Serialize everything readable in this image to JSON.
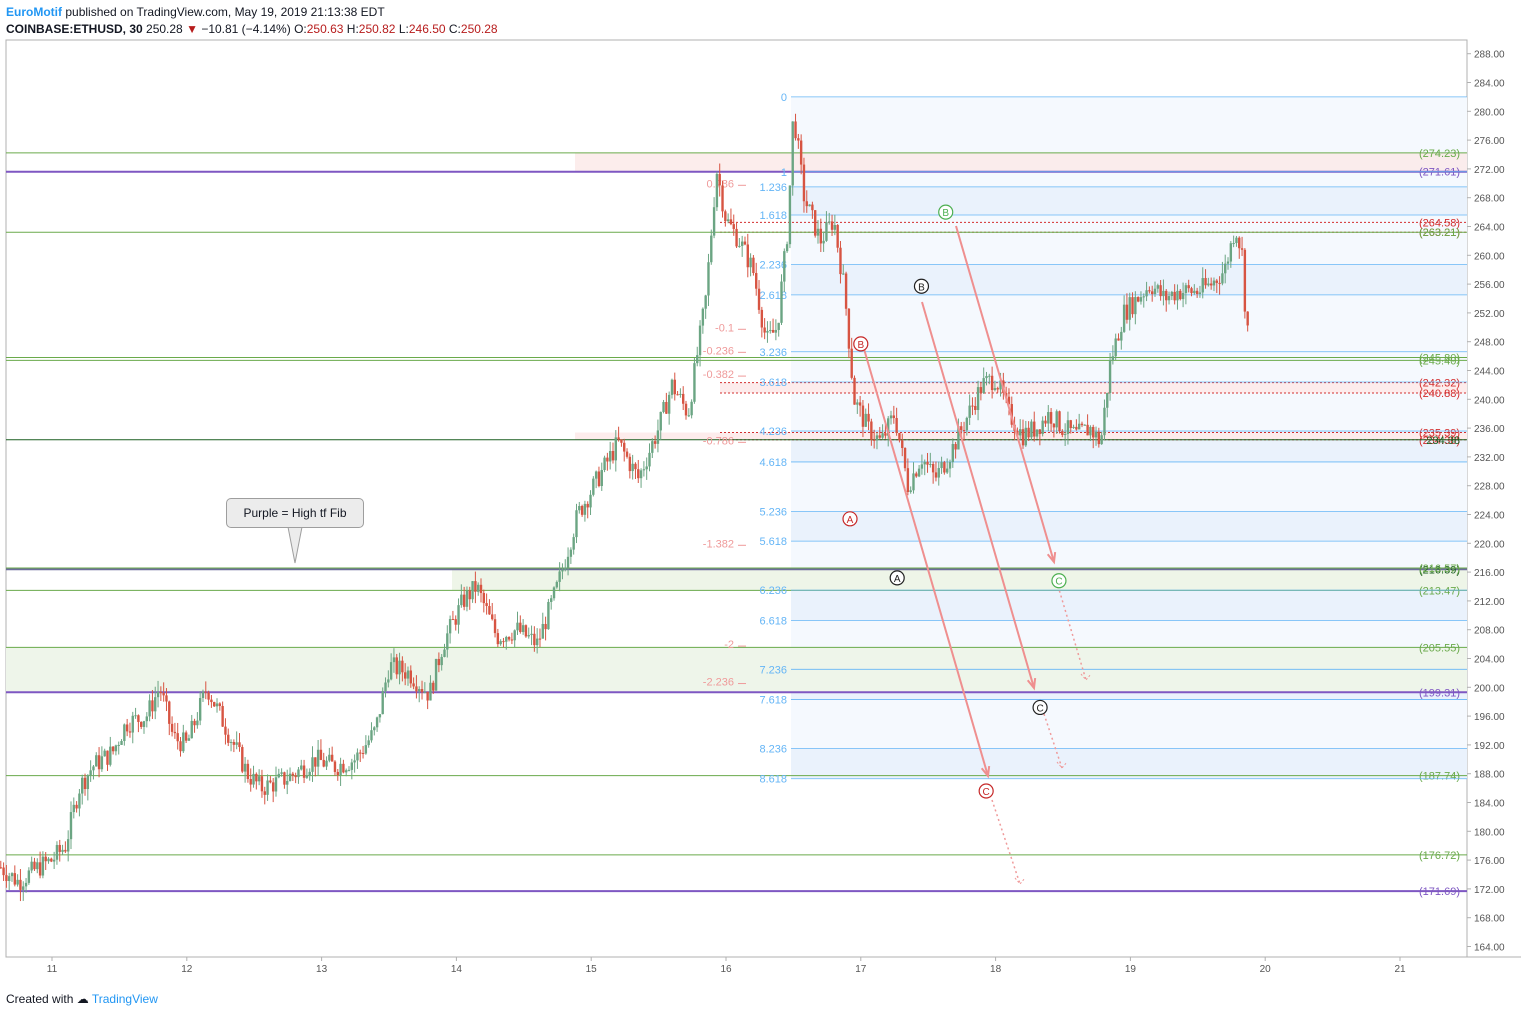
{
  "header": {
    "author": "EuroMotif",
    "published_text": "published on TradingView.com, May 19, 2019 21:13:38 EDT",
    "symbol": "COINBASE:ETHUSD, 30",
    "last": "250.28",
    "change_icon": "down-triangle-icon",
    "change": "−10.81 (−4.14%)",
    "open_label": "O:",
    "open": "250.63",
    "high_label": "H:",
    "high": "250.82",
    "low_label": "L:",
    "low": "246.50",
    "close_label": "C:",
    "close": "250.28"
  },
  "footer": {
    "created_with": "Created with",
    "brand": "TradingView",
    "logo_icon": "tradingview-logo-icon"
  },
  "callout": {
    "text": "Purple = High tf Fib"
  },
  "colors": {
    "up": "#6ba583",
    "down": "#d75442",
    "purple": "#7e57c2",
    "green_line": "#8bc34a",
    "blue_fib": "#64b5f6",
    "red_fib": "#ef9a9a",
    "wave_green": "#4caf50",
    "wave_red": "#c62828",
    "wave_black": "#212121"
  },
  "chart_data": {
    "type": "candlestick",
    "instrument": "COINBASE:ETHUSD",
    "interval": "30",
    "x_tick_labels": [
      "11",
      "12",
      "13",
      "14",
      "15",
      "16",
      "17",
      "18",
      "19",
      "20",
      "21"
    ],
    "y_tick_labels": [
      "164.00",
      "168.00",
      "172.00",
      "176.00",
      "180.00",
      "184.00",
      "188.00",
      "192.00",
      "196.00",
      "200.00",
      "204.00",
      "208.00",
      "212.00",
      "216.00",
      "220.00",
      "224.00",
      "228.00",
      "232.00",
      "236.00",
      "240.00",
      "244.00",
      "248.00",
      "252.00",
      "256.00",
      "260.00",
      "264.00",
      "268.00",
      "272.00",
      "276.00",
      "280.00",
      "284.00",
      "288.00"
    ],
    "ylim": [
      162,
      288
    ],
    "xlim": [
      10.6,
      21.5
    ],
    "price_path": [
      [
        10.62,
        175
      ],
      [
        10.75,
        173
      ],
      [
        10.9,
        175
      ],
      [
        11.0,
        176
      ],
      [
        11.1,
        178
      ],
      [
        11.2,
        186
      ],
      [
        11.3,
        189
      ],
      [
        11.45,
        191
      ],
      [
        11.55,
        195
      ],
      [
        11.7,
        196
      ],
      [
        11.8,
        200
      ],
      [
        11.9,
        193
      ],
      [
        12.0,
        192
      ],
      [
        12.15,
        200
      ],
      [
        12.3,
        194
      ],
      [
        12.45,
        188
      ],
      [
        12.55,
        186
      ],
      [
        12.7,
        187
      ],
      [
        12.8,
        188
      ],
      [
        12.95,
        190
      ],
      [
        13.1,
        189
      ],
      [
        13.25,
        190
      ],
      [
        13.4,
        194
      ],
      [
        13.5,
        203
      ],
      [
        13.65,
        202
      ],
      [
        13.8,
        199
      ],
      [
        13.9,
        206
      ],
      [
        14.05,
        212
      ],
      [
        14.15,
        214
      ],
      [
        14.3,
        207
      ],
      [
        14.45,
        208
      ],
      [
        14.6,
        206
      ],
      [
        14.75,
        214
      ],
      [
        14.9,
        224
      ],
      [
        15.05,
        229
      ],
      [
        15.2,
        234
      ],
      [
        15.35,
        229
      ],
      [
        15.5,
        236
      ],
      [
        15.6,
        242
      ],
      [
        15.72,
        238
      ],
      [
        15.85,
        254
      ],
      [
        15.93,
        272
      ],
      [
        16.0,
        265
      ],
      [
        16.1,
        262
      ],
      [
        16.2,
        258
      ],
      [
        16.3,
        248
      ],
      [
        16.38,
        250
      ],
      [
        16.46,
        264
      ],
      [
        16.5,
        280
      ],
      [
        16.58,
        268
      ],
      [
        16.7,
        262
      ],
      [
        16.8,
        265
      ],
      [
        16.88,
        255
      ],
      [
        16.95,
        240
      ],
      [
        17.05,
        236
      ],
      [
        17.15,
        234
      ],
      [
        17.25,
        238
      ],
      [
        17.35,
        228
      ],
      [
        17.45,
        232
      ],
      [
        17.55,
        229
      ],
      [
        17.65,
        232
      ],
      [
        17.8,
        238
      ],
      [
        17.9,
        242
      ],
      [
        18.0,
        243
      ],
      [
        18.1,
        238
      ],
      [
        18.2,
        235
      ],
      [
        18.3,
        236
      ],
      [
        18.4,
        238
      ],
      [
        18.5,
        236
      ],
      [
        18.6,
        235
      ],
      [
        18.7,
        236
      ],
      [
        18.78,
        234
      ],
      [
        18.85,
        245
      ],
      [
        18.95,
        252
      ],
      [
        19.05,
        254
      ],
      [
        19.15,
        256
      ],
      [
        19.25,
        254
      ],
      [
        19.35,
        255
      ],
      [
        19.5,
        255
      ],
      [
        19.6,
        256
      ],
      [
        19.7,
        258
      ],
      [
        19.78,
        264
      ],
      [
        19.83,
        260
      ],
      [
        19.86,
        250
      ],
      [
        19.88,
        250
      ]
    ],
    "horizontal_levels": [
      {
        "label": "(274.23)",
        "value": 274.23,
        "color": "green"
      },
      {
        "label": "(271.61)",
        "value": 271.61,
        "color": "purple"
      },
      {
        "label": "(264.58)",
        "value": 264.58,
        "color": "red"
      },
      {
        "label": "(263.21)",
        "value": 263.21,
        "color": "red"
      },
      {
        "label": "(263.21)",
        "value": 263.21,
        "color": "green"
      },
      {
        "label": "(245.80)",
        "value": 245.8,
        "color": "green"
      },
      {
        "label": "(245.40)",
        "value": 245.4,
        "color": "green"
      },
      {
        "label": "(242.32)",
        "value": 242.32,
        "color": "red"
      },
      {
        "label": "(240.88)",
        "value": 240.88,
        "color": "red"
      },
      {
        "label": "(235.39)",
        "value": 235.39,
        "color": "red"
      },
      {
        "label": "(234.38)",
        "value": 234.38,
        "color": "red"
      },
      {
        "label": "234.38",
        "value": 234.38,
        "color": "darkgreen"
      },
      {
        "label": "(216.39)",
        "value": 216.39,
        "color": "darkgreen"
      },
      {
        "label": "(216.57)",
        "value": 216.57,
        "color": "green"
      },
      {
        "label": "(213.47)",
        "value": 213.47,
        "color": "green"
      },
      {
        "label": "(205.55)",
        "value": 205.55,
        "color": "green"
      },
      {
        "label": "(199.31)",
        "value": 199.31,
        "color": "purple"
      },
      {
        "label": "(187.74)",
        "value": 187.74,
        "color": "green"
      },
      {
        "label": "(176.72)",
        "value": 176.72,
        "color": "green"
      },
      {
        "label": "(171.69)",
        "value": 171.69,
        "color": "purple"
      }
    ],
    "blue_fib_labels": [
      {
        "label": "0",
        "value": 282
      },
      {
        "label": "1",
        "value": 271.6
      },
      {
        "label": "1.236",
        "value": 269.5
      },
      {
        "label": "1.618",
        "value": 265.6
      },
      {
        "label": "2.236",
        "value": 258.7
      },
      {
        "label": "2.618",
        "value": 254.5
      },
      {
        "label": "3.236",
        "value": 246.6
      },
      {
        "label": "3.618",
        "value": 242.4
      },
      {
        "label": "4.236",
        "value": 235.6
      },
      {
        "label": "4.618",
        "value": 231.3
      },
      {
        "label": "5.236",
        "value": 224.4
      },
      {
        "label": "5.618",
        "value": 220.3
      },
      {
        "label": "6.236",
        "value": 213.5
      },
      {
        "label": "6.618",
        "value": 209.3
      },
      {
        "label": "7.236",
        "value": 202.5
      },
      {
        "label": "7.618",
        "value": 198.3
      },
      {
        "label": "8.236",
        "value": 191.5
      },
      {
        "label": "8.618",
        "value": 187.3
      }
    ],
    "red_fib_labels": [
      {
        "label": "0.786",
        "value": 270
      },
      {
        "label": "-0.1",
        "value": 250
      },
      {
        "label": "-0.236",
        "value": 246.8
      },
      {
        "label": "-0.382",
        "value": 243.5
      },
      {
        "label": "-0.786",
        "value": 234.3
      },
      {
        "label": "-1.382",
        "value": 220
      },
      {
        "label": "-2",
        "value": 206
      },
      {
        "label": "-2.236",
        "value": 200.8
      }
    ],
    "wave_labels": [
      {
        "label": "B",
        "x": 17.63,
        "value": 266,
        "color": "green"
      },
      {
        "label": "C",
        "x": 18.47,
        "value": 214.8,
        "color": "green"
      },
      {
        "label": "B",
        "x": 17.45,
        "value": 255.7,
        "color": "black"
      },
      {
        "label": "A",
        "x": 17.27,
        "value": 215.2,
        "color": "black"
      },
      {
        "label": "C",
        "x": 18.33,
        "value": 197.2,
        "color": "black"
      },
      {
        "label": "B",
        "x": 17.0,
        "value": 247.7,
        "color": "red"
      },
      {
        "label": "A",
        "x": 16.92,
        "value": 223.4,
        "color": "red"
      },
      {
        "label": "C",
        "x": 17.93,
        "value": 185.6,
        "color": "red"
      }
    ]
  }
}
